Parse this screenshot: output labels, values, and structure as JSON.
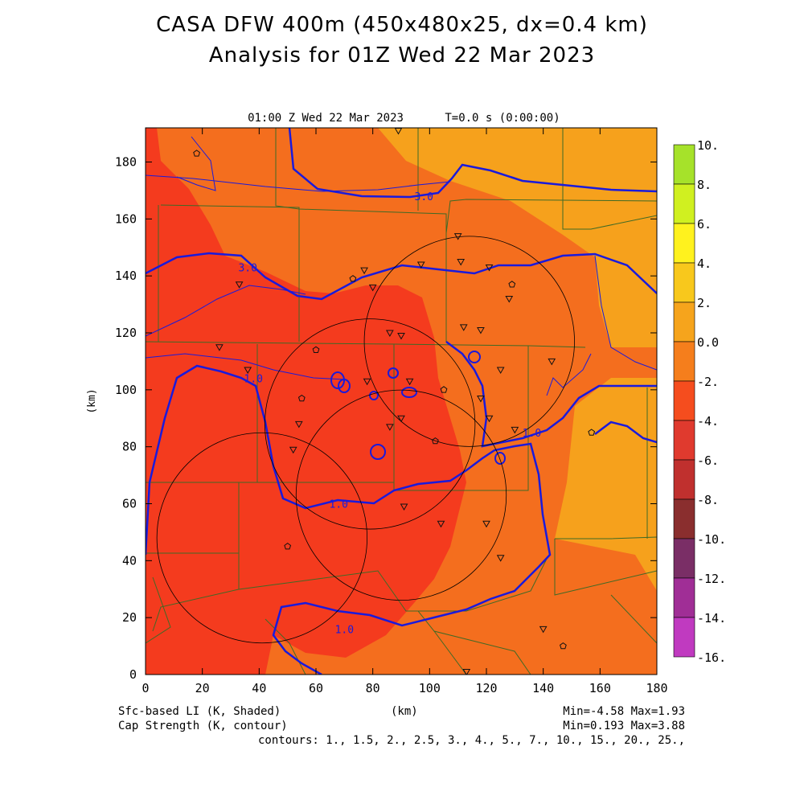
{
  "header": {
    "title": "CASA DFW 400m (450x480x25, dx=0.4 km)",
    "subtitle": "Analysis for 01Z Wed 22 Mar 2023",
    "plot_time": "01:00 Z Wed 22 Mar 2023",
    "model_time": "T=0.0 s (0:00:00)"
  },
  "chart_data": {
    "type": "heatmap",
    "xlabel": "(km)",
    "ylabel": "(km)",
    "xlim": [
      0,
      180
    ],
    "ylim": [
      0,
      192
    ],
    "x_ticks": [
      "0",
      "20",
      "40",
      "60",
      "80",
      "100",
      "120",
      "140",
      "160",
      "180"
    ],
    "y_ticks": [
      "0",
      "20",
      "40",
      "60",
      "80",
      "100",
      "120",
      "140",
      "160",
      "180"
    ],
    "colorbar": {
      "labels": [
        "10.",
        "8.",
        "6.",
        "4.",
        "2.",
        "0.0",
        "-2.",
        "-4.",
        "-6.",
        "-8.",
        "-10.",
        "-12.",
        "-14.",
        "-16."
      ],
      "colors": [
        "#a6e22a",
        "#d0f020",
        "#fff21e",
        "#f8c81c",
        "#f6a41c",
        "#f57e1c",
        "#f54d1e",
        "#e03a2e",
        "#c0302e",
        "#8a2e2e",
        "#7a2e66",
        "#a02e96",
        "#c03ac0",
        "#d846d8"
      ]
    },
    "contour_labels": [
      {
        "text": "3.0",
        "x": 98,
        "y": 168
      },
      {
        "text": "3.0",
        "x": 36,
        "y": 143
      },
      {
        "text": "1.0",
        "x": 38,
        "y": 104
      },
      {
        "text": "1.0",
        "x": 68,
        "y": 60
      },
      {
        "text": "1.0",
        "x": 136,
        "y": 85
      },
      {
        "text": "1.0",
        "x": 70,
        "y": 16
      }
    ],
    "radar_rings": [
      {
        "cx": 79,
        "cy": 88,
        "r": 37
      },
      {
        "cx": 90,
        "cy": 63,
        "r": 37
      },
      {
        "cx": 41,
        "cy": 48,
        "r": 37
      },
      {
        "cx": 114,
        "cy": 117,
        "r": 37
      }
    ],
    "stations_triangle": [
      [
        89,
        191
      ],
      [
        110,
        154
      ],
      [
        77,
        142
      ],
      [
        97,
        144
      ],
      [
        121,
        143
      ],
      [
        111,
        145
      ],
      [
        128,
        132
      ],
      [
        80,
        136
      ],
      [
        33,
        137
      ],
      [
        112,
        122
      ],
      [
        118,
        121
      ],
      [
        86,
        120
      ],
      [
        90,
        119
      ],
      [
        26,
        115
      ],
      [
        36,
        107
      ],
      [
        125,
        107
      ],
      [
        143,
        110
      ],
      [
        93,
        103
      ],
      [
        78,
        103
      ],
      [
        118,
        97
      ],
      [
        90,
        90
      ],
      [
        86,
        87
      ],
      [
        54,
        88
      ],
      [
        52,
        79
      ],
      [
        121,
        90
      ],
      [
        130,
        86
      ],
      [
        91,
        59
      ],
      [
        104,
        53
      ],
      [
        120,
        53
      ],
      [
        125,
        41
      ],
      [
        140,
        16
      ],
      [
        113,
        1
      ]
    ],
    "stations_pentagon": [
      [
        18,
        183
      ],
      [
        73,
        139
      ],
      [
        60,
        114
      ],
      [
        55,
        97
      ],
      [
        105,
        100
      ],
      [
        102,
        82
      ],
      [
        129,
        137
      ],
      [
        157,
        85
      ],
      [
        50,
        45
      ],
      [
        147,
        10
      ]
    ],
    "legend": {
      "shaded": "Sfc-based LI (K, Shaded)",
      "contour": "Cap Strength (K, contour)",
      "xlabel": "(km)",
      "shaded_minmax": "Min=-4.58 Max=1.93",
      "contour_minmax": "Min=0.193 Max=3.88",
      "contours": "contours: 1., 1.5, 2., 2.5, 3., 4., 5., 7., 10., 15., 20., 25.,"
    }
  },
  "colors": {
    "li_neg4": "#f43b1e",
    "li_neg2": "#f46e1e",
    "li_0": "#f6a11c",
    "contour": "#1a1adc",
    "county": "#3f6a26",
    "ring": "#000000"
  }
}
